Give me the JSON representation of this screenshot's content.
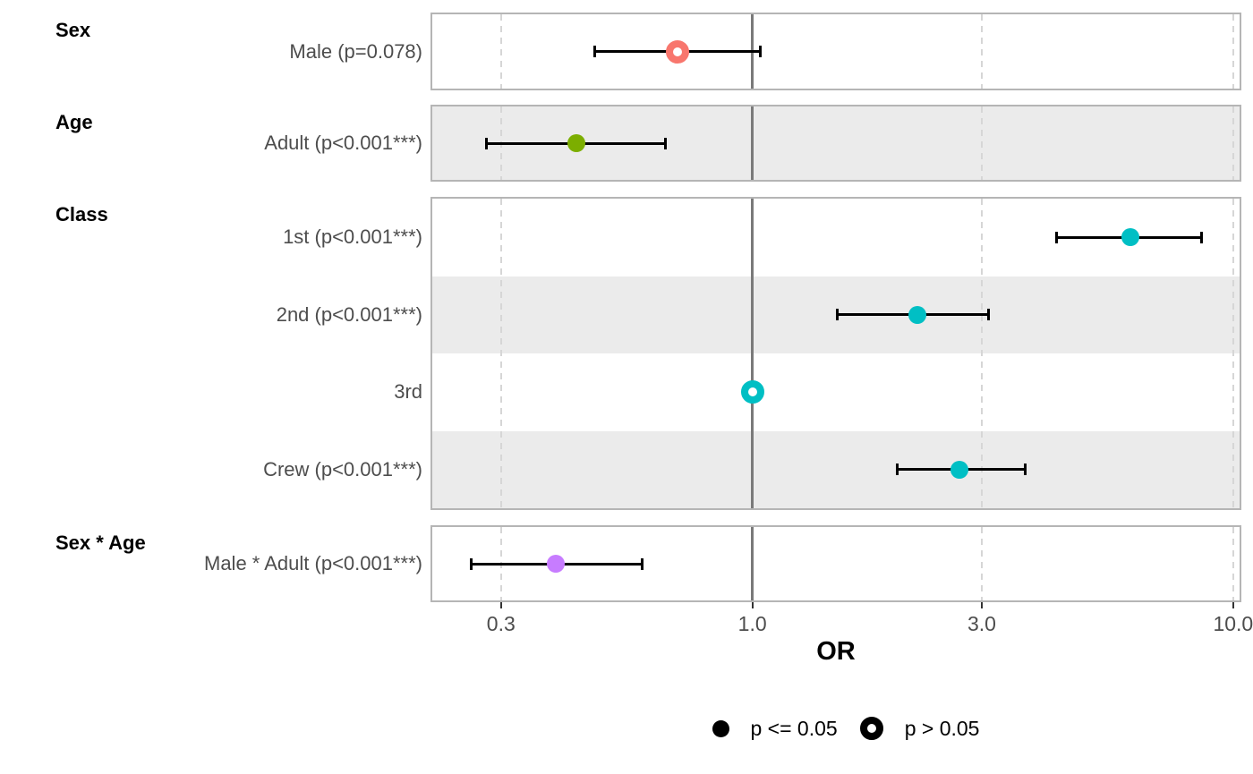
{
  "chart_data": {
    "type": "forest_plot",
    "xlabel": "OR",
    "x_scale": "log10",
    "x_ticks": [
      0.3,
      1.0,
      3.0,
      10.0
    ],
    "x_tick_labels": [
      "0.3",
      "1.0",
      "3.0",
      "10.0"
    ],
    "x_range": [
      0.214,
      10.4
    ],
    "reference_line": 1.0,
    "grid": "dashed vertical gridlines at ticks, solid gray line at OR=1",
    "panels": [
      {
        "group": "Sex",
        "rows": [
          {
            "label": "Male (p=0.078)",
            "or": 0.7,
            "ci_low": 0.47,
            "ci_high": 1.04,
            "significant": false,
            "reference": false,
            "color": "#F8766D"
          }
        ]
      },
      {
        "group": "Age",
        "rows": [
          {
            "label": "Adult (p<0.001***)",
            "or": 0.43,
            "ci_low": 0.28,
            "ci_high": 0.66,
            "significant": true,
            "reference": false,
            "color": "#7CAE00"
          }
        ]
      },
      {
        "group": "Class",
        "rows": [
          {
            "label": "1st (p<0.001***)",
            "or": 6.1,
            "ci_low": 4.3,
            "ci_high": 8.6,
            "significant": true,
            "reference": false,
            "color": "#00BFC4"
          },
          {
            "label": "2nd (p<0.001***)",
            "or": 2.2,
            "ci_low": 1.5,
            "ci_high": 3.1,
            "significant": true,
            "reference": false,
            "color": "#00BFC4"
          },
          {
            "label": "3rd",
            "or": 1.0,
            "ci_low": null,
            "ci_high": null,
            "significant": false,
            "reference": true,
            "color": "#00BFC4"
          },
          {
            "label": "Crew (p<0.001***)",
            "or": 2.7,
            "ci_low": 2.0,
            "ci_high": 3.7,
            "significant": true,
            "reference": false,
            "color": "#00BFC4"
          }
        ]
      },
      {
        "group": "Sex * Age",
        "rows": [
          {
            "label": "Male * Adult (p<0.001***)",
            "or": 0.39,
            "ci_low": 0.26,
            "ci_high": 0.59,
            "significant": true,
            "reference": false,
            "color": "#C77CFF"
          }
        ]
      }
    ],
    "legend": {
      "items": [
        {
          "label": "p <= 0.05",
          "marker": "filled-circle"
        },
        {
          "label": "p > 0.05",
          "marker": "open-circle"
        }
      ]
    }
  },
  "colors": {
    "sex_point": "#F8766D",
    "age_point": "#7CAE00",
    "class_point": "#00BFC4",
    "interaction_point": "#C77CFF",
    "stripe": "#EBEBEB",
    "panel_border": "#B5B5B5",
    "grid_dashed": "#D6D6D6",
    "reference_line": "#7A7A7A",
    "errorbar": "#000000",
    "label_text": "#4D4D4D"
  }
}
